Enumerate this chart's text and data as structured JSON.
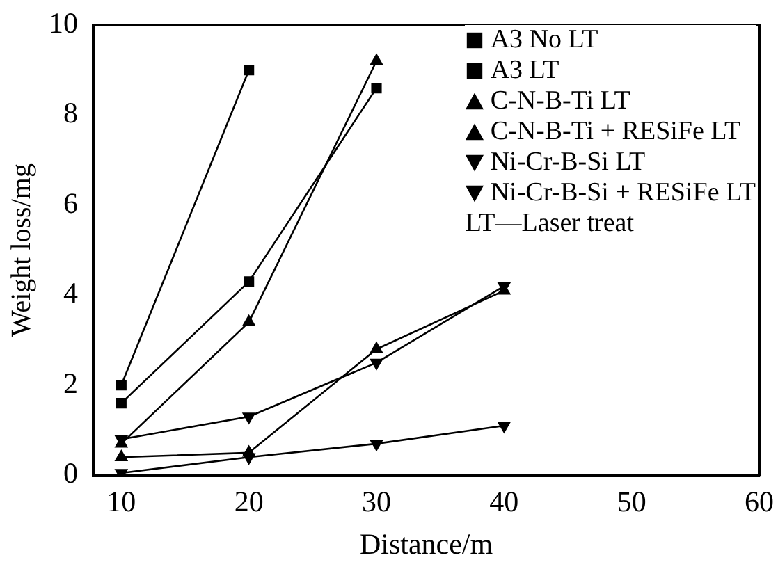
{
  "chart_data": {
    "type": "line",
    "xlabel": "Distance/m",
    "ylabel": "Weight loss/mg",
    "xlim": [
      7.8,
      60
    ],
    "xticks": [
      10,
      20,
      30,
      40,
      50,
      60
    ],
    "ylim": [
      0,
      10
    ],
    "yticks": [
      0,
      2,
      4,
      6,
      8,
      10
    ],
    "grid": false,
    "legend": "top right",
    "line_style": "solid",
    "annotations": [
      "LT—Laser treat"
    ],
    "series": [
      {
        "name": "A3 No LT",
        "color": "#000000",
        "marker": "square",
        "x": [
          10,
          20
        ],
        "values": [
          2.0,
          9.0
        ]
      },
      {
        "name": "A3 LT",
        "color": "#000000",
        "marker": "square",
        "x": [
          10,
          20,
          30
        ],
        "values": [
          1.6,
          4.3,
          8.6
        ]
      },
      {
        "name": "C-N-B-Ti LT",
        "color": "#000000",
        "marker": "triangle",
        "x": [
          10,
          20,
          30
        ],
        "values": [
          0.7,
          3.4,
          9.2
        ]
      },
      {
        "name": "C-N-B-Ti + RESiFe LT",
        "color": "#000000",
        "marker": "triangle",
        "x": [
          10,
          20,
          30,
          40
        ],
        "values": [
          0.4,
          0.5,
          2.8,
          4.1
        ]
      },
      {
        "name": "Ni-Cr-B-Si LT",
        "color": "#000000",
        "marker": "triangle-down",
        "x": [
          10,
          20,
          30,
          40
        ],
        "values": [
          0.8,
          1.3,
          2.5,
          4.2
        ]
      },
      {
        "name": "Ni-Cr-B-Si + RESiFe LT",
        "color": "#000000",
        "marker": "triangle-down",
        "x": [
          10,
          20,
          30,
          40
        ],
        "values": [
          0.05,
          0.4,
          0.7,
          1.1
        ]
      }
    ]
  }
}
